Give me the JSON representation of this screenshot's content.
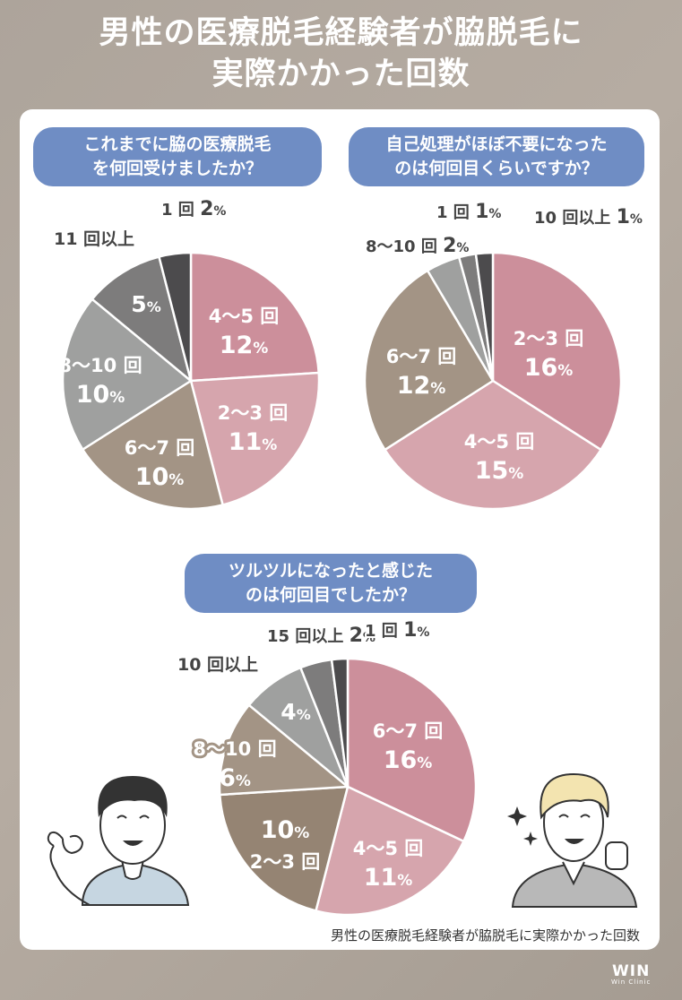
{
  "page": {
    "title_line1": "男性の医療脱毛経験者が脇脱毛に",
    "title_line2": "実際かかった回数",
    "caption": "男性の医療脱毛経験者が脇脱毛に実際かかった回数",
    "logo": "WIN",
    "logo_sub": "Win Clinic"
  },
  "chart_data": [
    {
      "type": "pie",
      "title_line1": "これまでに脇の医療脱毛",
      "title_line2": "を何回受けましたか？",
      "slices": [
        {
          "label": "4〜5 回",
          "value": 12,
          "display": "12",
          "color": "#cc8f9b"
        },
        {
          "label": "2〜3 回",
          "value": 11,
          "display": "11",
          "color": "#d6a5ad"
        },
        {
          "label": "6〜7 回",
          "value": 10,
          "display": "10",
          "color": "#a39485"
        },
        {
          "label": "8〜10 回",
          "value": 10,
          "display": "10",
          "color": "#9fa09f"
        },
        {
          "label": "11 回以上",
          "value": 5,
          "display": "5",
          "color": "#7d7c7c"
        },
        {
          "label": "1 回",
          "value": 2,
          "display": "2",
          "color": "#4c4b4d"
        }
      ]
    },
    {
      "type": "pie",
      "title_line1": "自己処理がほぼ不要になった",
      "title_line2": "のは何回目くらいですか？",
      "slices": [
        {
          "label": "2〜3 回",
          "value": 16,
          "display": "16",
          "color": "#cc8f9b"
        },
        {
          "label": "4〜5 回",
          "value": 15,
          "display": "15",
          "color": "#d6a5ad"
        },
        {
          "label": "6〜7 回",
          "value": 12,
          "display": "12",
          "color": "#a39485"
        },
        {
          "label": "8〜10 回",
          "value": 2,
          "display": "2",
          "color": "#9fa09f"
        },
        {
          "label": "1 回",
          "value": 1,
          "display": "1",
          "color": "#7d7c7c"
        },
        {
          "label": "10 回以上",
          "value": 1,
          "display": "1",
          "color": "#4c4b4d"
        }
      ]
    },
    {
      "type": "pie",
      "title_line1": "ツルツルになったと感じた",
      "title_line2": "のは何回目でしたか？",
      "slices": [
        {
          "label": "6〜7 回",
          "value": 16,
          "display": "16",
          "color": "#cc8f9b"
        },
        {
          "label": "4〜5 回",
          "value": 11,
          "display": "11",
          "color": "#d6a5ad"
        },
        {
          "label": "2〜3 回",
          "value": 10,
          "display": "10",
          "color": "#958473"
        },
        {
          "label": "8〜10 回",
          "value": 6,
          "display": "6",
          "color": "#a39485"
        },
        {
          "label": "10 回以上",
          "value": 4,
          "display": "4",
          "color": "#9fa09f"
        },
        {
          "label": "15 回以上",
          "value": 2,
          "display": "2",
          "color": "#7d7c7c"
        },
        {
          "label": "1 回",
          "value": 1,
          "display": "1",
          "color": "#4c4b4d"
        }
      ]
    }
  ],
  "percent_unit": "%"
}
